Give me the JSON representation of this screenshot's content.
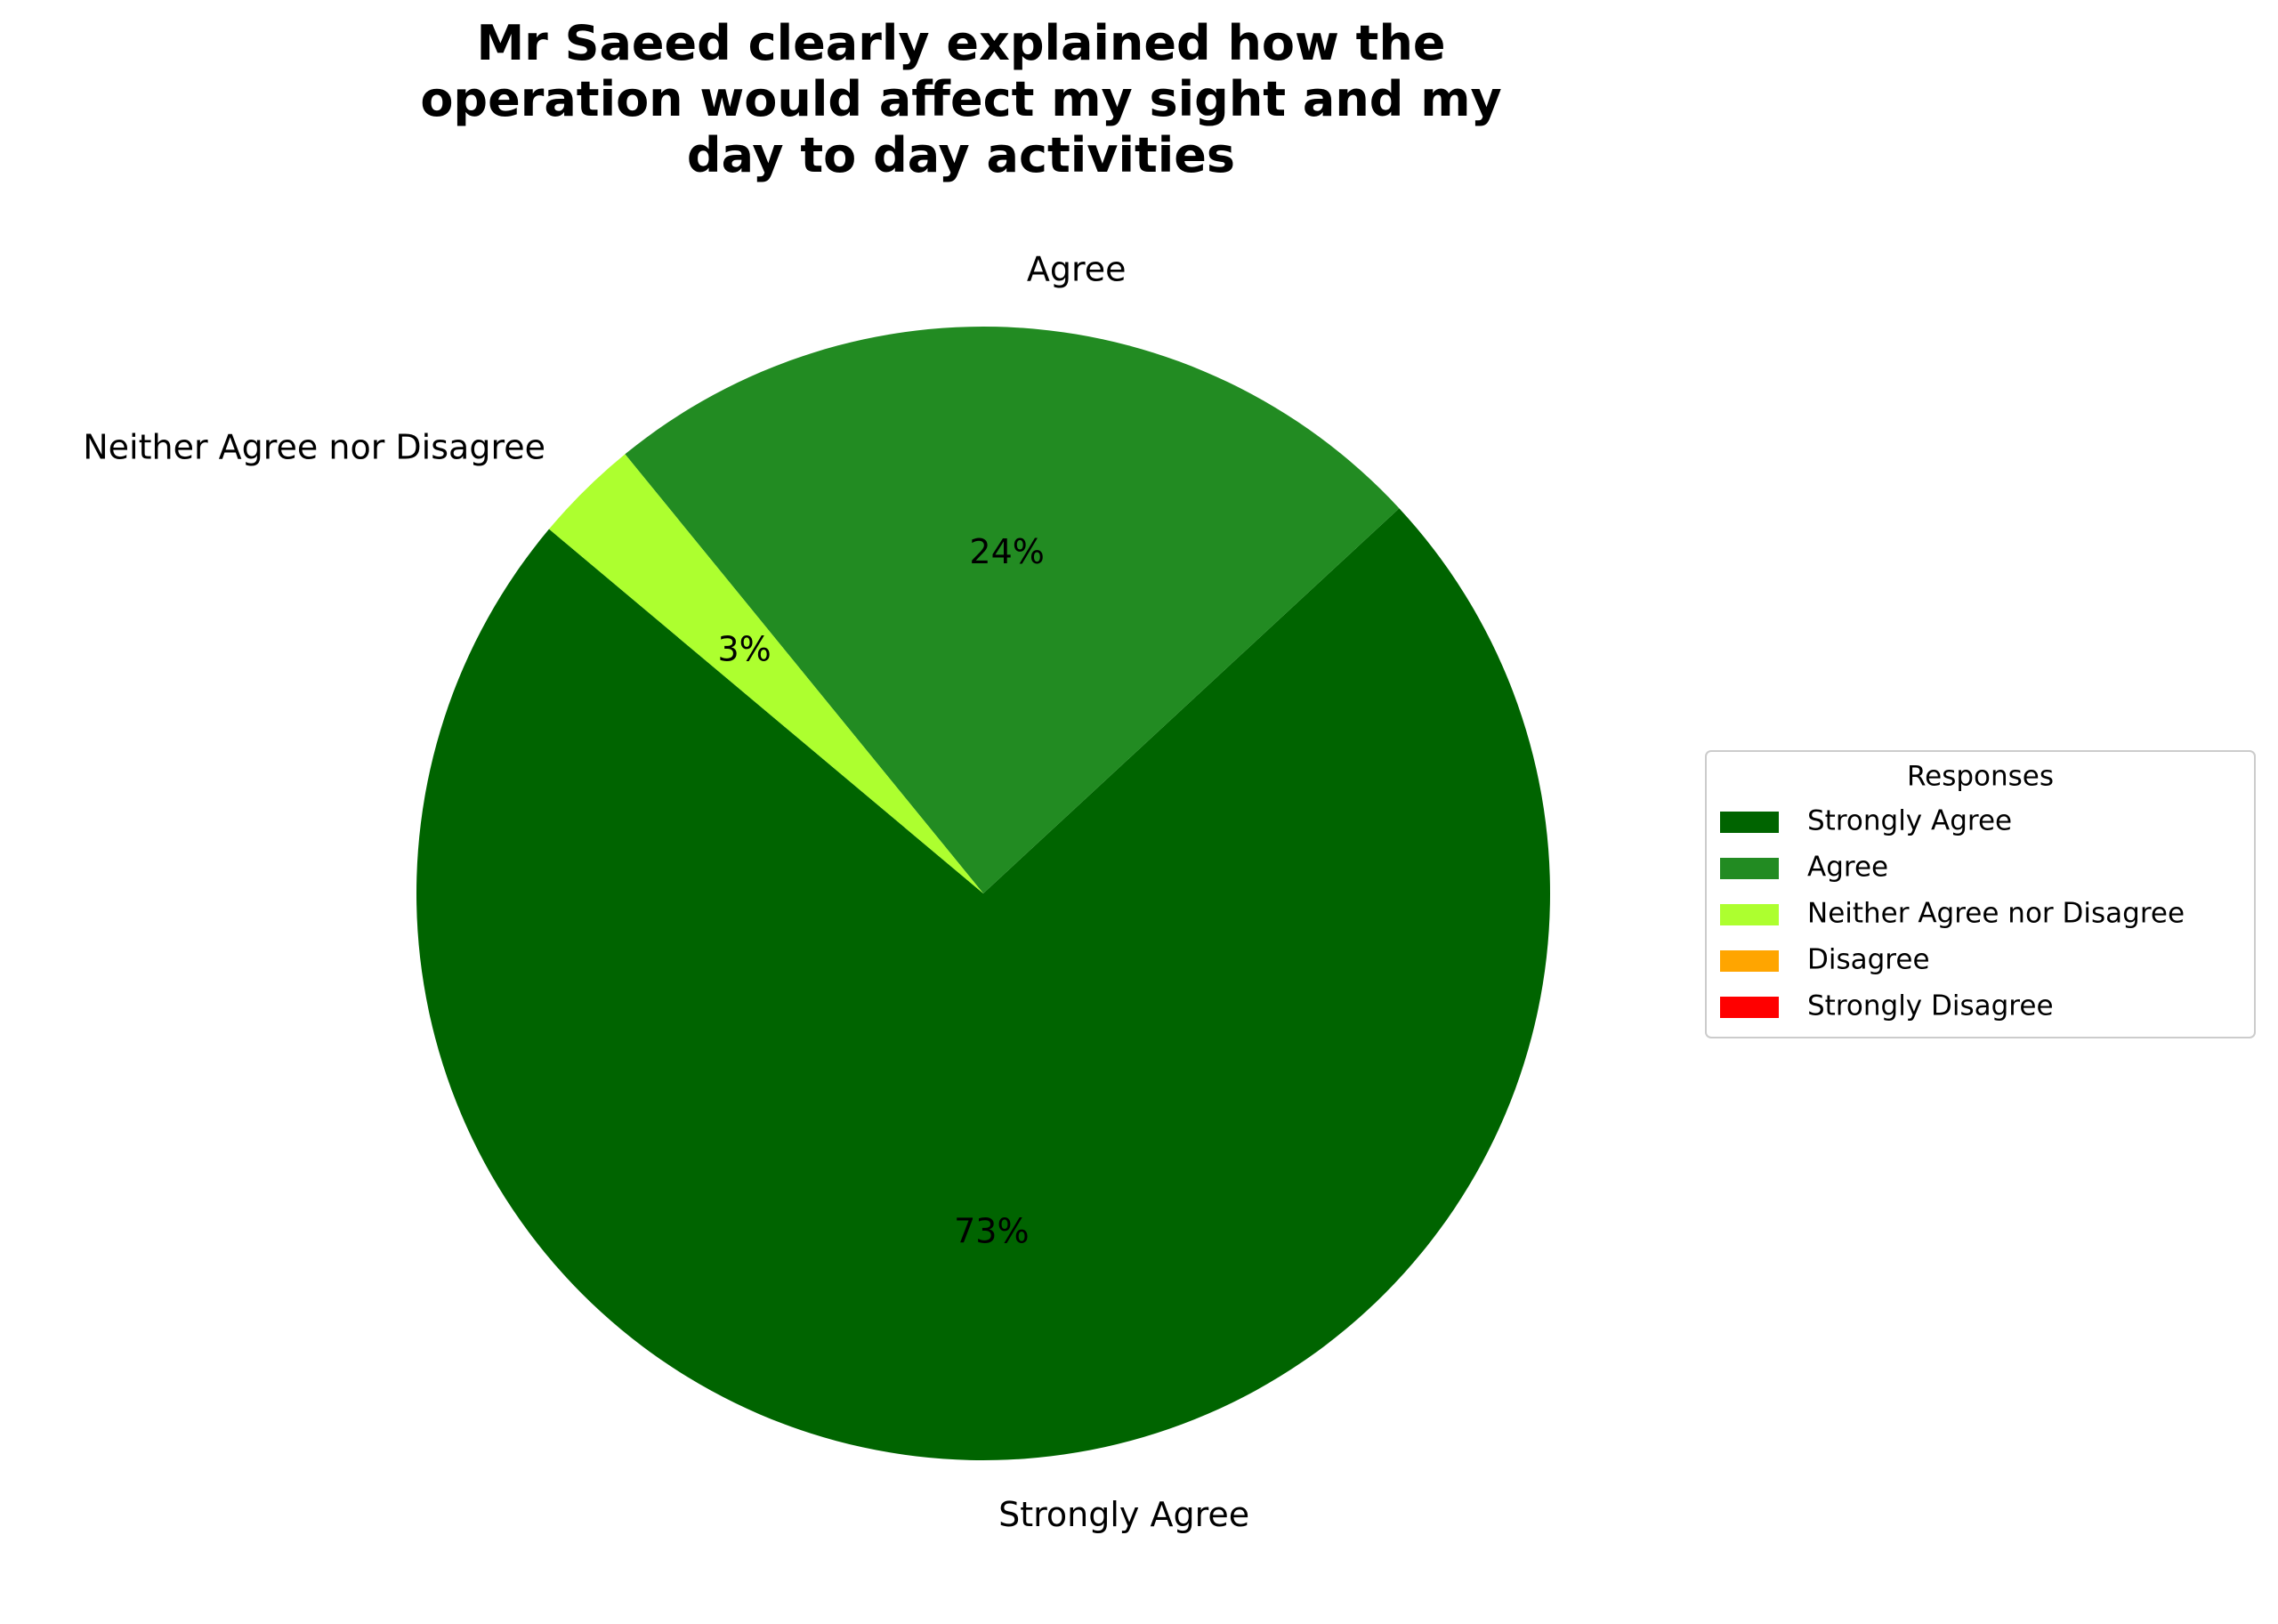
{
  "chart_data": {
    "type": "pie",
    "title": "Mr Saeed clearly explained how the\noperation would affect my sight and my\nday to day activities",
    "categories": [
      "Strongly Agree",
      "Agree",
      "Neither Agree nor Disagree",
      "Disagree",
      "Strongly Disagree"
    ],
    "values": [
      73,
      24,
      3,
      0,
      0
    ],
    "value_labels": [
      "73%",
      "24%",
      "3%",
      null,
      null
    ],
    "colors": [
      "#006400",
      "#228b22",
      "#adff2f",
      "#ffa500",
      "#ff0000"
    ],
    "legend_title": "Responses",
    "legend": "right"
  }
}
